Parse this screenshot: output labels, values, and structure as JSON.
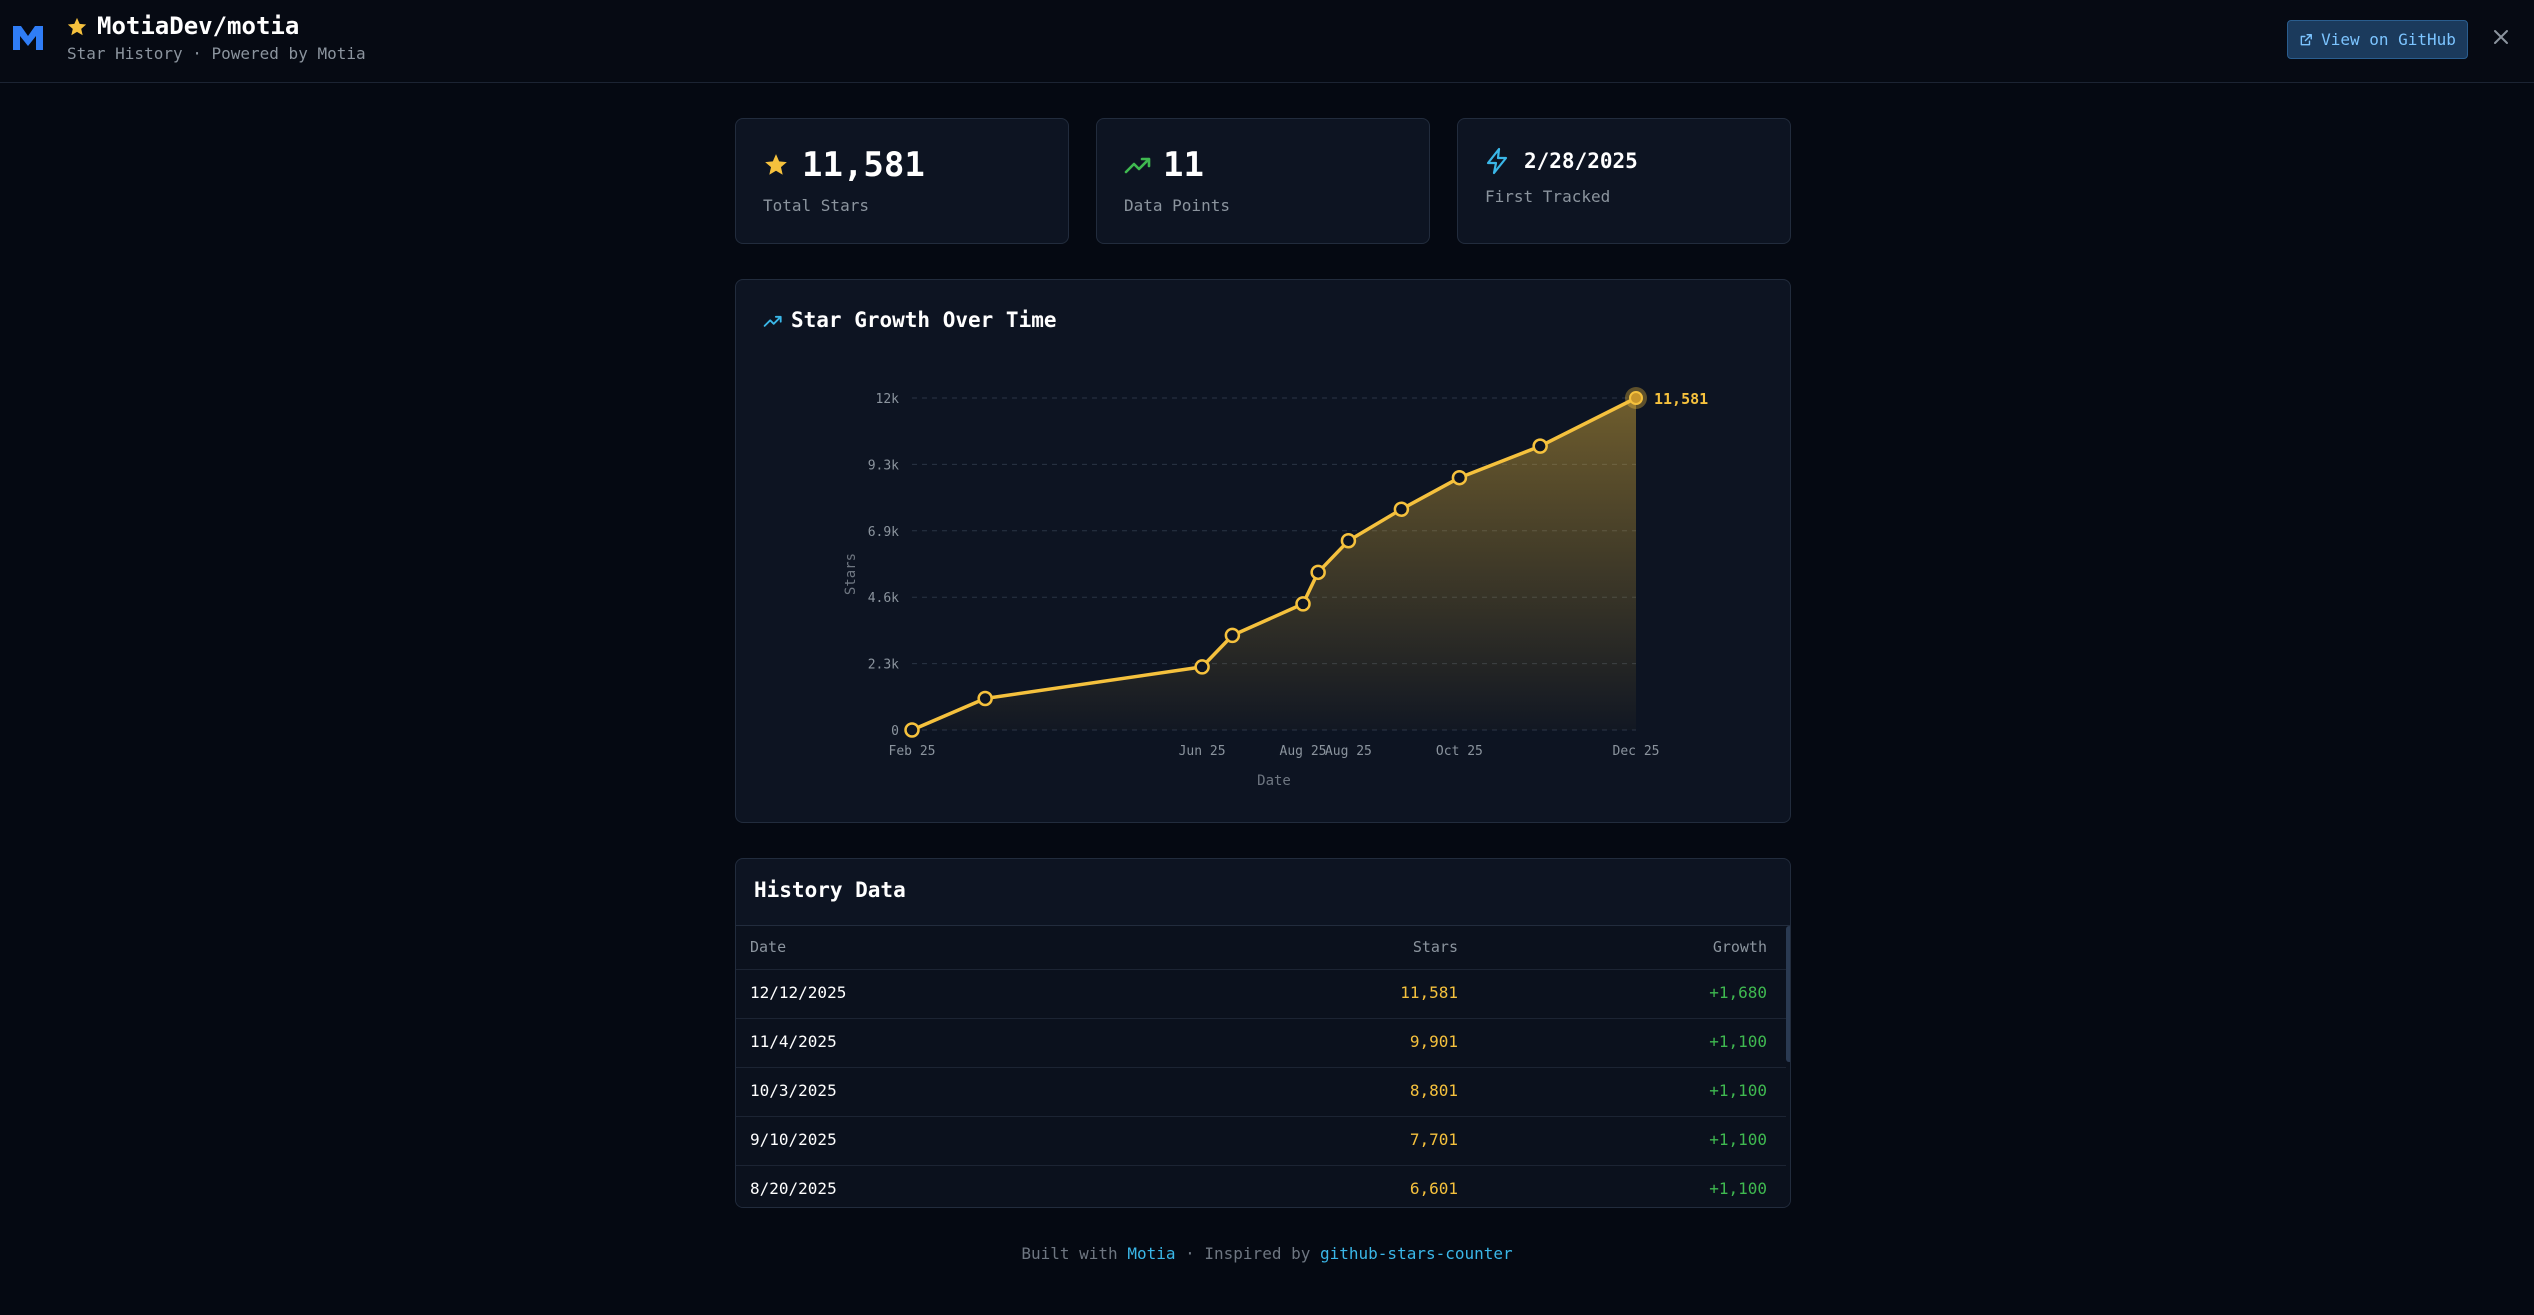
{
  "header": {
    "repo": "MotiaDev/motia",
    "subtitle": "Star History · Powered by Motia",
    "github_button": "View on GitHub"
  },
  "stats": [
    {
      "value": "11,581",
      "label": "Total Stars",
      "icon": "star-icon"
    },
    {
      "value": "11",
      "label": "Data Points",
      "icon": "trending-up-icon"
    },
    {
      "value": "2/28/2025",
      "label": "First Tracked",
      "icon": "bolt-icon"
    }
  ],
  "chart_panel": {
    "title": "Star Growth Over Time"
  },
  "chart_data": {
    "type": "area",
    "title": "Star Growth Over Time",
    "xlabel": "Date",
    "ylabel": "Stars",
    "ylim": [
      0,
      11581
    ],
    "y_ticks": [
      {
        "value": 0,
        "label": "0"
      },
      {
        "value": 2316,
        "label": "2.3k"
      },
      {
        "value": 4632,
        "label": "4.6k"
      },
      {
        "value": 6949,
        "label": "6.9k"
      },
      {
        "value": 9265,
        "label": "9.3k"
      },
      {
        "value": 11581,
        "label": "12k"
      }
    ],
    "x_range_days": [
      0,
      287
    ],
    "x_ticks": [
      {
        "day": 0,
        "label": "Feb 25"
      },
      {
        "day": 115,
        "label": "Jun 25"
      },
      {
        "day": 155,
        "label": "Aug 25"
      },
      {
        "day": 173,
        "label": "Aug 25"
      },
      {
        "day": 217,
        "label": "Oct 25"
      },
      {
        "day": 287,
        "label": "Dec 25"
      }
    ],
    "points": [
      {
        "day": 0,
        "value": 0
      },
      {
        "day": 29,
        "value": 1100
      },
      {
        "day": 115,
        "value": 2200
      },
      {
        "day": 127,
        "value": 3300
      },
      {
        "day": 155,
        "value": 4400
      },
      {
        "day": 161,
        "value": 5500
      },
      {
        "day": 173,
        "value": 6601
      },
      {
        "day": 194,
        "value": 7701
      },
      {
        "day": 217,
        "value": 8801
      },
      {
        "day": 249,
        "value": 9901
      },
      {
        "day": 287,
        "value": 11581
      }
    ],
    "last_label": "11,581",
    "line_color": "#f5c13d"
  },
  "history": {
    "title": "History Data",
    "columns": [
      "Date",
      "Stars",
      "Growth"
    ],
    "rows": [
      {
        "date": "12/12/2025",
        "stars": "11,581",
        "growth": "+1,680"
      },
      {
        "date": "11/4/2025",
        "stars": "9,901",
        "growth": "+1,100"
      },
      {
        "date": "10/3/2025",
        "stars": "8,801",
        "growth": "+1,100"
      },
      {
        "date": "9/10/2025",
        "stars": "7,701",
        "growth": "+1,100"
      },
      {
        "date": "8/20/2025",
        "stars": "6,601",
        "growth": "+1,100"
      }
    ]
  },
  "footer": {
    "built_with": "Built with",
    "motia_link": "Motia",
    "separator": "· Inspired by",
    "counter_link": "github-stars-counter"
  }
}
